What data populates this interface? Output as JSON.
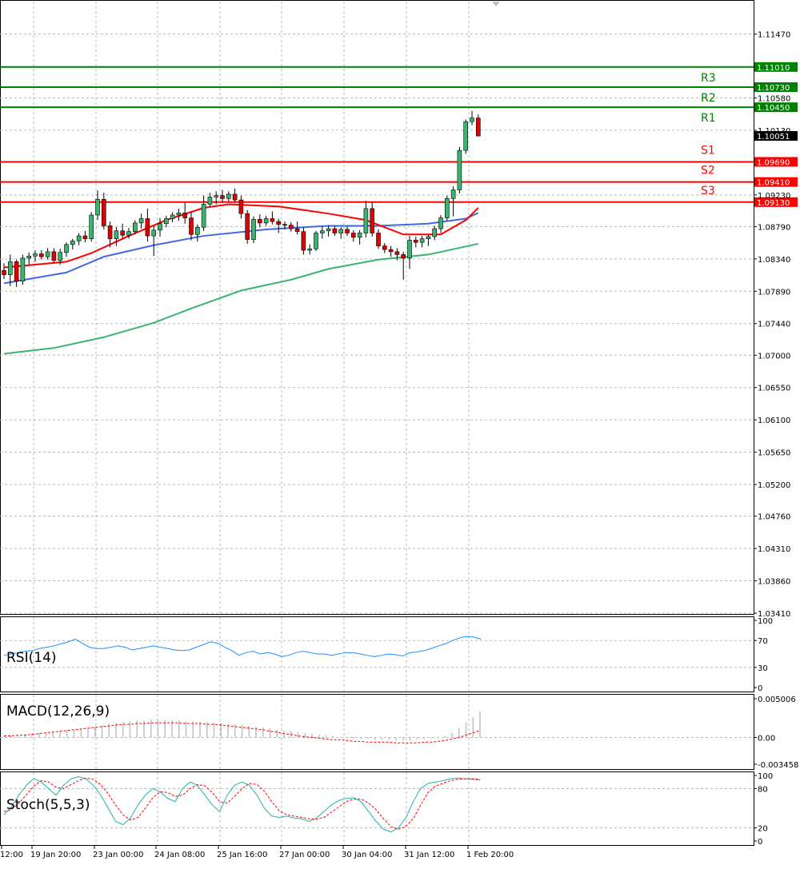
{
  "chart_data": {
    "type": "candlestick",
    "symbol": "EURUSD",
    "timeframe": "H4",
    "main": {
      "ylim": [
        1.0341,
        1.1192
      ],
      "y_ticks": [
        "1.11470",
        "1.10580",
        "1.10130",
        "1.09230",
        "1.08790",
        "1.08340",
        "1.07890",
        "1.07440",
        "1.07000",
        "1.06550",
        "1.06100",
        "1.05650",
        "1.05200",
        "1.04760",
        "1.04310",
        "1.03860",
        "1.03410"
      ],
      "current_price": "1.10051",
      "levels": [
        {
          "name": "R3",
          "value": 1.1101,
          "label": "1.11010",
          "color": "#008000"
        },
        {
          "name": "R2",
          "value": 1.1073,
          "label": "1.10730",
          "color": "#008000"
        },
        {
          "name": "R1",
          "value": 1.1045,
          "label": "1.10450",
          "color": "#008000"
        },
        {
          "name": "S1",
          "value": 1.0969,
          "label": "1.09690",
          "color": "#ff0000"
        },
        {
          "name": "S2",
          "value": 1.0941,
          "label": "1.09410",
          "color": "#ff0000"
        },
        {
          "name": "S3",
          "value": 1.0913,
          "label": "1.09130",
          "color": "#ff0000"
        }
      ],
      "candles": [
        [
          1.0818,
          1.0828,
          1.0806,
          1.0812
        ],
        [
          1.0812,
          1.084,
          1.0796,
          1.083
        ],
        [
          1.083,
          1.0833,
          1.0795,
          1.0803
        ],
        [
          1.0803,
          1.084,
          1.0798,
          1.0835
        ],
        [
          1.0835,
          1.0843,
          1.0826,
          1.0838
        ],
        [
          1.0838,
          1.0846,
          1.083,
          1.0841
        ],
        [
          1.0841,
          1.0846,
          1.0833,
          1.0837
        ],
        [
          1.0837,
          1.0849,
          1.0833,
          1.0844
        ],
        [
          1.0844,
          1.0849,
          1.0828,
          1.0832
        ],
        [
          1.0832,
          1.0848,
          1.0826,
          1.0843
        ],
        [
          1.0843,
          1.0857,
          1.0837,
          1.0854
        ],
        [
          1.0854,
          1.0862,
          1.0847,
          1.0859
        ],
        [
          1.0859,
          1.087,
          1.0853,
          1.0866
        ],
        [
          1.0866,
          1.0873,
          1.0857,
          1.0862
        ],
        [
          1.0862,
          1.0899,
          1.0858,
          1.0895
        ],
        [
          1.0895,
          1.0929,
          1.0888,
          1.0917
        ],
        [
          1.0917,
          1.0926,
          1.0875,
          1.088
        ],
        [
          1.088,
          1.0886,
          1.085,
          1.0862
        ],
        [
          1.0862,
          1.0878,
          1.0852,
          1.0873
        ],
        [
          1.0873,
          1.0883,
          1.0862,
          1.0867
        ],
        [
          1.0867,
          1.0877,
          1.0862,
          1.0872
        ],
        [
          1.0872,
          1.0888,
          1.0868,
          1.0884
        ],
        [
          1.0884,
          1.0897,
          1.0876,
          1.089
        ],
        [
          1.089,
          1.0904,
          1.0858,
          1.0866
        ],
        [
          1.0866,
          1.088,
          1.0838,
          1.0874
        ],
        [
          1.0874,
          1.0891,
          1.0865,
          1.0883
        ],
        [
          1.0883,
          1.0894,
          1.0878,
          1.089
        ],
        [
          1.089,
          1.0899,
          1.0885,
          1.0895
        ],
        [
          1.0895,
          1.0904,
          1.0887,
          1.0898
        ],
        [
          1.0898,
          1.0912,
          1.0883,
          1.0891
        ],
        [
          1.0891,
          1.0899,
          1.086,
          1.0868
        ],
        [
          1.0868,
          1.0882,
          1.0858,
          1.0878
        ],
        [
          1.0878,
          1.0922,
          1.0873,
          1.091
        ],
        [
          1.091,
          1.0926,
          1.0906,
          1.092
        ],
        [
          1.092,
          1.0928,
          1.091,
          1.0922
        ],
        [
          1.0922,
          1.093,
          1.0912,
          1.0918
        ],
        [
          1.0918,
          1.0928,
          1.0914,
          1.0924
        ],
        [
          1.0924,
          1.0932,
          1.0912,
          1.0916
        ],
        [
          1.0916,
          1.0922,
          1.089,
          1.0897
        ],
        [
          1.0897,
          1.0902,
          1.0855,
          1.0861
        ],
        [
          1.0861,
          1.0893,
          1.0856,
          1.0889
        ],
        [
          1.0889,
          1.0896,
          1.0878,
          1.0884
        ],
        [
          1.0884,
          1.0894,
          1.088,
          1.089
        ],
        [
          1.089,
          1.09,
          1.0882,
          1.0886
        ],
        [
          1.0886,
          1.089,
          1.087,
          1.0882
        ],
        [
          1.0882,
          1.0886,
          1.0875,
          1.0881
        ],
        [
          1.0881,
          1.0885,
          1.0872,
          1.0876
        ],
        [
          1.0876,
          1.0886,
          1.0868,
          1.0872
        ],
        [
          1.0872,
          1.0878,
          1.084,
          1.0846
        ],
        [
          1.0846,
          1.0854,
          1.084,
          1.0848
        ],
        [
          1.0848,
          1.0873,
          1.0845,
          1.087
        ],
        [
          1.087,
          1.0879,
          1.0862,
          1.0873
        ],
        [
          1.0873,
          1.088,
          1.0865,
          1.0876
        ],
        [
          1.0876,
          1.088,
          1.0866,
          1.087
        ],
        [
          1.087,
          1.0878,
          1.0862,
          1.0875
        ],
        [
          1.0875,
          1.0879,
          1.0866,
          1.087
        ],
        [
          1.087,
          1.0874,
          1.0858,
          1.0864
        ],
        [
          1.0864,
          1.0874,
          1.0854,
          1.087
        ],
        [
          1.087,
          1.0915,
          1.0864,
          1.0904
        ],
        [
          1.0904,
          1.0913,
          1.0865,
          1.087
        ],
        [
          1.087,
          1.0875,
          1.0848,
          1.0852
        ],
        [
          1.0852,
          1.0856,
          1.0842,
          1.0847
        ],
        [
          1.0847,
          1.0852,
          1.0837,
          1.0844
        ],
        [
          1.0844,
          1.0849,
          1.0832,
          1.084
        ],
        [
          1.084,
          1.0844,
          1.0805,
          1.0835
        ],
        [
          1.0835,
          1.0866,
          1.082,
          1.086
        ],
        [
          1.086,
          1.0865,
          1.085,
          1.0857
        ],
        [
          1.0857,
          1.0866,
          1.085,
          1.0862
        ],
        [
          1.0862,
          1.0868,
          1.0852,
          1.0865
        ],
        [
          1.0865,
          1.088,
          1.086,
          1.0876
        ],
        [
          1.0876,
          1.0895,
          1.087,
          1.0891
        ],
        [
          1.0891,
          1.0922,
          1.0887,
          1.0918
        ],
        [
          1.0918,
          1.0935,
          1.0893,
          1.093
        ],
        [
          1.093,
          1.099,
          1.0925,
          1.0985
        ],
        [
          1.0985,
          1.1028,
          1.098,
          1.1025
        ],
        [
          1.1025,
          1.104,
          1.102,
          1.103
        ],
        [
          1.103,
          1.1035,
          1.101,
          1.1005
        ]
      ],
      "ma_red": [
        [
          0,
          1.0822
        ],
        [
          10,
          1.083
        ],
        [
          14,
          1.0842
        ],
        [
          20,
          1.0866
        ],
        [
          26,
          1.0888
        ],
        [
          32,
          1.0905
        ],
        [
          36,
          1.091
        ],
        [
          44,
          1.0907
        ],
        [
          52,
          1.0897
        ],
        [
          58,
          1.0888
        ],
        [
          64,
          1.0868
        ],
        [
          70,
          1.0868
        ],
        [
          74,
          1.0888
        ],
        [
          76,
          1.0905
        ]
      ],
      "ma_blue": [
        [
          0,
          1.08
        ],
        [
          10,
          1.0815
        ],
        [
          16,
          1.0837
        ],
        [
          24,
          1.0853
        ],
        [
          32,
          1.0866
        ],
        [
          42,
          1.0875
        ],
        [
          52,
          1.088
        ],
        [
          60,
          1.088
        ],
        [
          68,
          1.0883
        ],
        [
          74,
          1.089
        ],
        [
          76,
          1.0898
        ]
      ],
      "ma_green": [
        [
          0,
          1.0702
        ],
        [
          8,
          1.071
        ],
        [
          16,
          1.0725
        ],
        [
          24,
          1.0745
        ],
        [
          30,
          1.0765
        ],
        [
          38,
          1.079
        ],
        [
          46,
          1.0805
        ],
        [
          52,
          1.082
        ],
        [
          60,
          1.0833
        ],
        [
          68,
          1.084
        ],
        [
          76,
          1.0855
        ]
      ]
    },
    "rsi": {
      "label": "RSI(14)",
      "ylim": [
        0,
        100
      ],
      "y_ticks": [
        "100",
        "70",
        "30",
        "0"
      ],
      "values": [
        48,
        50,
        52,
        54,
        55,
        58,
        60,
        62,
        65,
        68,
        72,
        66,
        60,
        58,
        58,
        60,
        62,
        60,
        56,
        58,
        60,
        62,
        60,
        58,
        56,
        55,
        56,
        60,
        64,
        68,
        66,
        60,
        55,
        48,
        52,
        54,
        50,
        52,
        50,
        46,
        48,
        52,
        54,
        52,
        50,
        50,
        48,
        50,
        52,
        52,
        50,
        48,
        46,
        48,
        50,
        49,
        47,
        52,
        53,
        55,
        58,
        62,
        65,
        70,
        74,
        76,
        75,
        72
      ]
    },
    "macd": {
      "label": "MACD(12,26,9)",
      "ylim": [
        -0.003458,
        0.005006
      ],
      "y_ticks": [
        "0.005006",
        "0.00",
        "-0.003458"
      ],
      "histogram": [
        0.0002,
        0.0003,
        0.0003,
        0.0004,
        0.0005,
        0.0006,
        0.0007,
        0.0008,
        0.0008,
        0.0009,
        0.001,
        0.0011,
        0.0012,
        0.0014,
        0.0016,
        0.0018,
        0.0019,
        0.002,
        0.0021,
        0.0022,
        0.0022,
        0.0023,
        0.0023,
        0.0023,
        0.0022,
        0.0022,
        0.0021,
        0.0021,
        0.002,
        0.002,
        0.0019,
        0.0019,
        0.0018,
        0.0017,
        0.0016,
        0.0015,
        0.0014,
        0.0013,
        0.0012,
        0.001,
        0.0009,
        0.0008,
        0.0007,
        0.0006,
        0.0005,
        0.0004,
        0.0003,
        0.0002,
        0.0001,
        0.0,
        -0.0001,
        -0.0002,
        -0.0002,
        -0.0003,
        -0.0003,
        -0.0003,
        -0.0004,
        -0.0004,
        -0.0004,
        -0.0003,
        -0.0002,
        -0.0001,
        0.0,
        0.0002,
        0.0006,
        0.0012,
        0.002,
        0.0026,
        0.0034
      ],
      "signal": [
        0.0002,
        0.0002,
        0.0003,
        0.0003,
        0.0004,
        0.0005,
        0.0006,
        0.0007,
        0.0008,
        0.0009,
        0.001,
        0.0011,
        0.0012,
        0.0013,
        0.0014,
        0.0015,
        0.0016,
        0.0017,
        0.0017,
        0.0018,
        0.0018,
        0.0019,
        0.0019,
        0.0019,
        0.0019,
        0.0019,
        0.0018,
        0.0018,
        0.0018,
        0.0017,
        0.0017,
        0.0016,
        0.0015,
        0.0014,
        0.0013,
        0.0012,
        0.0011,
        0.001,
        0.0008,
        0.0007,
        0.0005,
        0.0004,
        0.0002,
        0.0001,
        0.0,
        -0.0001,
        -0.0002,
        -0.0003,
        -0.0003,
        -0.0004,
        -0.0005,
        -0.0005,
        -0.0006,
        -0.0006,
        -0.0006,
        -0.0006,
        -0.0007,
        -0.0007,
        -0.0007,
        -0.0007,
        -0.0006,
        -0.0006,
        -0.0005,
        -0.0004,
        -0.0002,
        0.0,
        0.0003,
        0.0006,
        0.0009
      ]
    },
    "stoch": {
      "label": "Stoch(5,5,3)",
      "ylim": [
        0,
        100
      ],
      "y_ticks": [
        "100",
        "80",
        "20",
        "0"
      ],
      "k": [
        40,
        52,
        70,
        85,
        95,
        90,
        80,
        70,
        85,
        95,
        98,
        95,
        85,
        70,
        50,
        30,
        25,
        35,
        55,
        70,
        80,
        75,
        65,
        60,
        80,
        90,
        85,
        70,
        55,
        45,
        70,
        85,
        90,
        85,
        70,
        50,
        38,
        36,
        38,
        35,
        34,
        30,
        35,
        45,
        55,
        62,
        65,
        66,
        60,
        45,
        30,
        18,
        14,
        20,
        35,
        60,
        80,
        88,
        90,
        92,
        95,
        96,
        95,
        94,
        93
      ],
      "d": [
        45,
        48,
        58,
        70,
        84,
        92,
        90,
        82,
        80,
        86,
        92,
        96,
        94,
        86,
        72,
        55,
        40,
        32,
        36,
        50,
        66,
        75,
        74,
        68,
        70,
        80,
        86,
        84,
        74,
        60,
        58,
        68,
        80,
        88,
        86,
        76,
        60,
        46,
        40,
        38,
        36,
        34,
        33,
        36,
        44,
        52,
        60,
        64,
        64,
        58,
        48,
        34,
        22,
        18,
        22,
        34,
        55,
        74,
        84,
        88,
        92,
        94,
        95,
        95,
        94
      ]
    },
    "x_ticks": [
      "12:00",
      "19 Jan 20:00",
      "23 Jan 00:00",
      "24 Jan 08:00",
      "25 Jan 16:00",
      "27 Jan 00:00",
      "30 Jan 04:00",
      "31 Jan 12:00",
      "1 Feb 20:00"
    ]
  }
}
